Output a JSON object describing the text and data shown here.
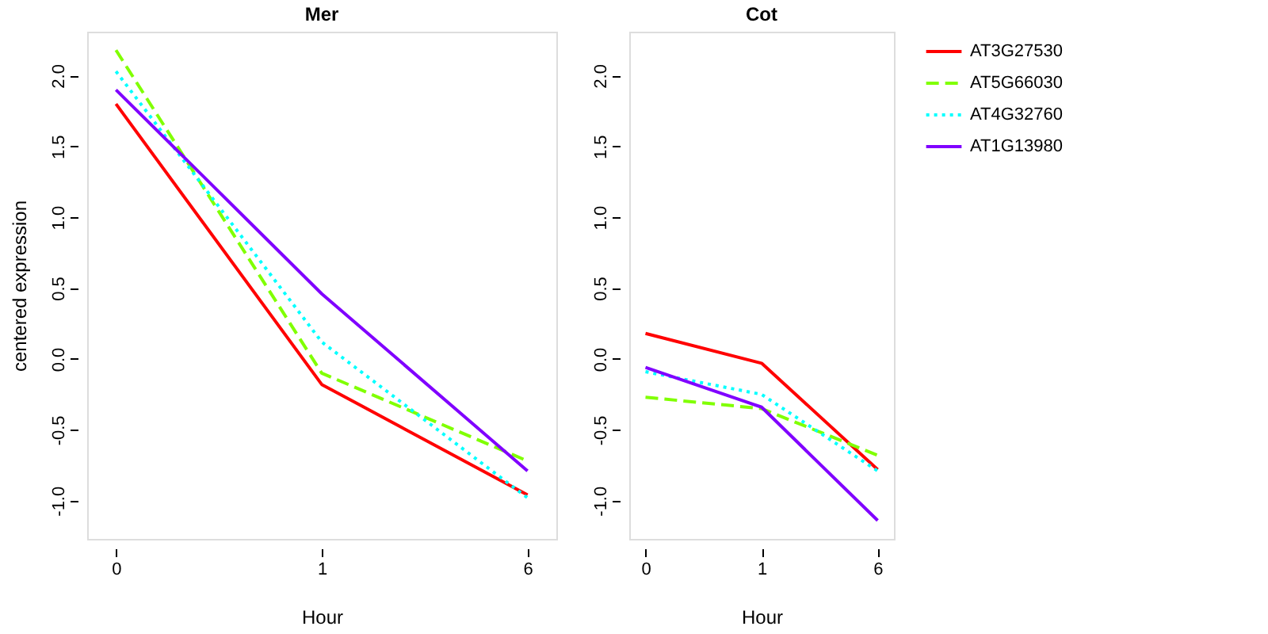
{
  "chart_data": [
    {
      "type": "line",
      "title": "Mer",
      "xlabel": "Hour",
      "ylabel": "centered expression",
      "categories": [
        "0",
        "1",
        "6"
      ],
      "ylim": [
        -1.27,
        2.31
      ],
      "yticks": [
        {
          "value": -1,
          "label": "-1.0"
        },
        {
          "value": -0.5,
          "label": "-0.5"
        },
        {
          "value": 0,
          "label": "0.0"
        },
        {
          "value": 0.5,
          "label": "0.5"
        },
        {
          "value": 1,
          "label": "1.0"
        },
        {
          "value": 1.5,
          "label": "1.5"
        },
        {
          "value": 2,
          "label": "2.0"
        }
      ],
      "grid": false,
      "legend": "right",
      "series": [
        {
          "name": "AT3G27530",
          "color": "#ff0000",
          "line_style": "solid",
          "values": [
            1.8,
            -0.18,
            -0.96
          ]
        },
        {
          "name": "AT5G66030",
          "color": "#80ff00",
          "line_style": "dashed",
          "values": [
            2.18,
            -0.1,
            -0.72
          ]
        },
        {
          "name": "AT4G32760",
          "color": "#00ffff",
          "line_style": "dotted",
          "values": [
            2.03,
            0.12,
            -0.98
          ]
        },
        {
          "name": "AT1G13980",
          "color": "#8000ff",
          "line_style": "solid",
          "values": [
            1.9,
            0.46,
            -0.79
          ]
        }
      ]
    },
    {
      "type": "line",
      "title": "Cot",
      "xlabel": "Hour",
      "categories": [
        "0",
        "1",
        "6"
      ],
      "ylim": [
        -1.27,
        2.31
      ],
      "yticks": [
        {
          "value": -1,
          "label": "-1.0"
        },
        {
          "value": -0.5,
          "label": "-0.5"
        },
        {
          "value": 0,
          "label": "0.0"
        },
        {
          "value": 0.5,
          "label": "0.5"
        },
        {
          "value": 1,
          "label": "1.0"
        },
        {
          "value": 1.5,
          "label": "1.5"
        },
        {
          "value": 2,
          "label": "2.0"
        }
      ],
      "grid": false,
      "legend": "right",
      "series": [
        {
          "name": "AT3G27530",
          "color": "#ff0000",
          "line_style": "solid",
          "values": [
            0.18,
            -0.03,
            -0.78
          ]
        },
        {
          "name": "AT5G66030",
          "color": "#80ff00",
          "line_style": "dashed",
          "values": [
            -0.27,
            -0.35,
            -0.68
          ]
        },
        {
          "name": "AT4G32760",
          "color": "#00ffff",
          "line_style": "dotted",
          "values": [
            -0.09,
            -0.25,
            -0.79
          ]
        },
        {
          "name": "AT1G13980",
          "color": "#8000ff",
          "line_style": "solid",
          "values": [
            -0.06,
            -0.34,
            -1.14
          ]
        }
      ]
    }
  ]
}
